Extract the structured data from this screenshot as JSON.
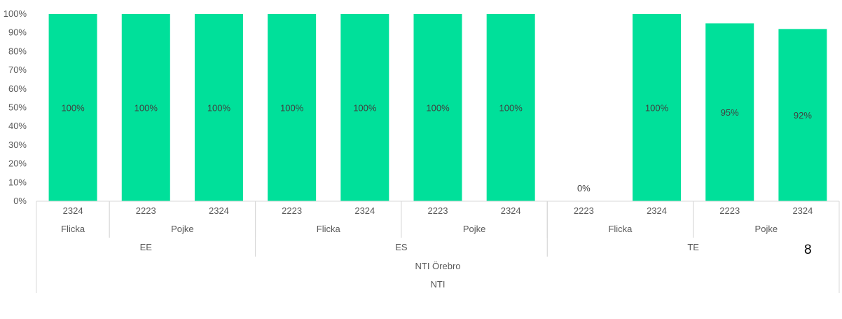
{
  "chart_data": {
    "type": "bar",
    "color": "#00E09A",
    "ylim": [
      0,
      1
    ],
    "yticks": [
      "0%",
      "10%",
      "20%",
      "30%",
      "40%",
      "50%",
      "60%",
      "70%",
      "80%",
      "90%",
      "100%"
    ],
    "grid": false,
    "legend": "none",
    "categories": [
      "2324",
      "2223",
      "2324",
      "2223",
      "2324",
      "2223",
      "2324",
      "2223",
      "2324",
      "2223",
      "2324"
    ],
    "values": [
      1.0,
      1.0,
      1.0,
      1.0,
      1.0,
      1.0,
      1.0,
      0.0,
      1.0,
      0.95,
      0.92
    ],
    "data_labels": [
      "100%",
      "100%",
      "100%",
      "100%",
      "100%",
      "100%",
      "100%",
      "0%",
      "100%",
      "95%",
      "92%"
    ],
    "groups_level2": [
      {
        "label": "Flicka",
        "span": [
          0,
          0
        ]
      },
      {
        "label": "Pojke",
        "span": [
          1,
          2
        ]
      },
      {
        "label": "Flicka",
        "span": [
          3,
          4
        ]
      },
      {
        "label": "Pojke",
        "span": [
          5,
          6
        ]
      },
      {
        "label": "Flicka",
        "span": [
          7,
          8
        ]
      },
      {
        "label": "Pojke",
        "span": [
          9,
          10
        ]
      }
    ],
    "groups_level3": [
      {
        "label": "EE",
        "span": [
          0,
          2
        ]
      },
      {
        "label": "ES",
        "span": [
          3,
          6
        ]
      },
      {
        "label": "TE",
        "span": [
          7,
          10
        ]
      }
    ],
    "groups_level4": [
      {
        "label": "NTI Örebro",
        "span": [
          0,
          10
        ]
      }
    ],
    "groups_level5": [
      {
        "label": "NTI",
        "span": [
          0,
          10
        ]
      }
    ]
  },
  "slide_number": "8"
}
